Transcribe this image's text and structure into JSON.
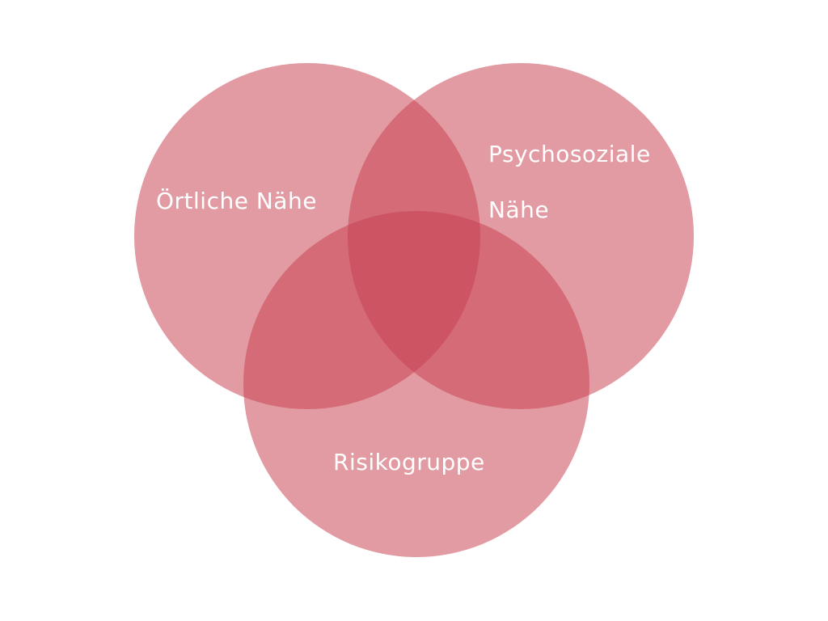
{
  "diagram": {
    "type": "venn",
    "sets": [
      {
        "id": "local",
        "label": "Örtliche Nähe"
      },
      {
        "id": "psycho",
        "label_lines": [
          "Psychosoziale",
          "Nähe"
        ]
      },
      {
        "id": "risk",
        "label": "Risikogruppe"
      }
    ],
    "colors": {
      "circle_fill": "#c8404f",
      "circle_opacity": 0.52,
      "label_color": "#ffffff"
    }
  }
}
